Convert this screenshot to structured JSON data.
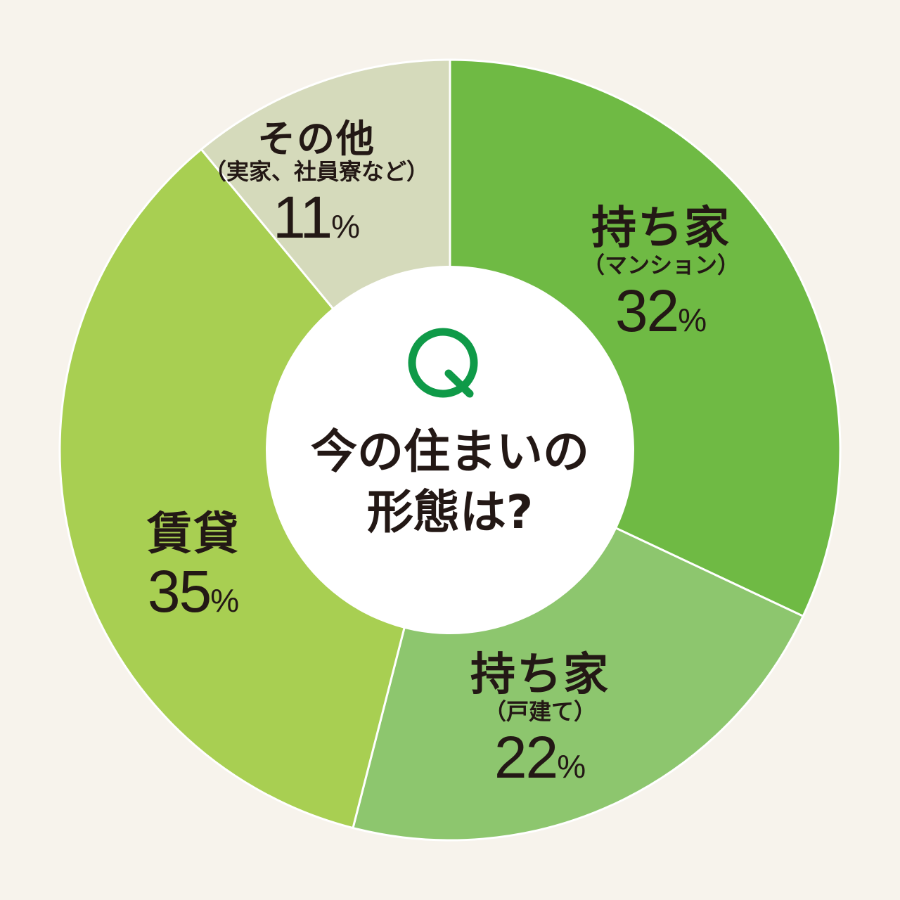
{
  "colors": {
    "background": "#f7f3ec",
    "q_icon": "#0f9a48",
    "center": "#ffffff"
  },
  "center": {
    "icon": "Q",
    "line1": "今の住まいの",
    "line2": "形態は?"
  },
  "chart_data": {
    "type": "pie",
    "donut": true,
    "start": "top",
    "direction": "clockwise",
    "unit": "%",
    "slices": [
      {
        "title": "持ち家",
        "sub": "（マンション）",
        "value": 32,
        "label": "32",
        "color": "#6fba44"
      },
      {
        "title": "持ち家",
        "sub": "（戸建て）",
        "value": 22,
        "label": "22",
        "color": "#8dc66e"
      },
      {
        "title": "賃貸",
        "sub": "",
        "value": 35,
        "label": "35",
        "color": "#a8cf52"
      },
      {
        "title": "その他",
        "sub": "（実家、社員寮など）",
        "value": 11,
        "label": "11",
        "color": "#d5dabb"
      }
    ]
  }
}
